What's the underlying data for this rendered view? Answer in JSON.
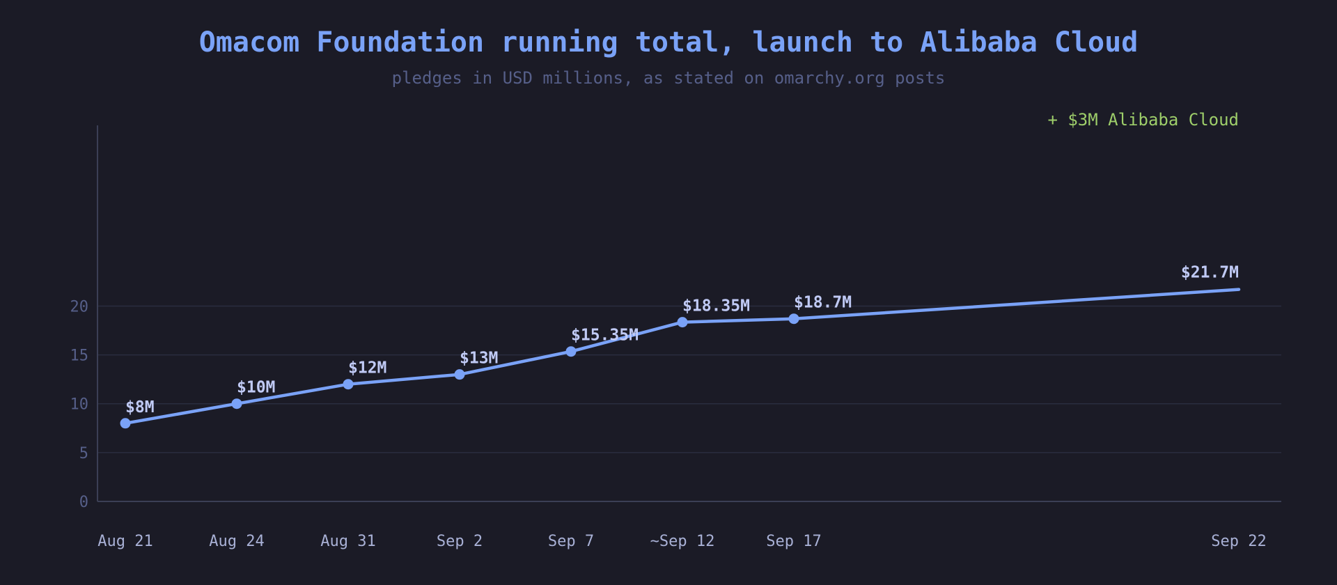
{
  "chart_data": {
    "type": "line",
    "title": "Omacom Foundation running total, launch to Alibaba Cloud",
    "subtitle": "pledges in USD millions, as stated on omarchy.org posts",
    "categories": [
      "Aug 21",
      "Aug 24",
      "Aug 31",
      "Sep 2",
      "Sep 7",
      "~Sep 12",
      "Sep 17",
      "Sep 22"
    ],
    "values": [
      8,
      10,
      12,
      13,
      15.35,
      18.35,
      18.7,
      21.7
    ],
    "data_labels": [
      "$8M",
      "$10M",
      "$12M",
      "$13M",
      "$15.35M",
      "$18.35M",
      "$18.7M",
      "$21.7M"
    ],
    "markers": [
      true,
      true,
      true,
      true,
      true,
      true,
      true,
      false
    ],
    "y_ticks": [
      0,
      5,
      10,
      15,
      20
    ],
    "ylim": [
      0,
      38.5
    ],
    "grid": true,
    "annotation": "+ $3M Alibaba Cloud",
    "colors": {
      "background": "#1b1b26",
      "line": "#7aa2f7",
      "title": "#7aa2f7",
      "subtitle": "#565f89",
      "grid": "#2a2d3f",
      "axis": "#3b3f55",
      "tick_y": "#565f89",
      "tick_x": "#a9b1d6",
      "data_label": "#c0caf5",
      "annotation": "#9ece6a"
    }
  }
}
